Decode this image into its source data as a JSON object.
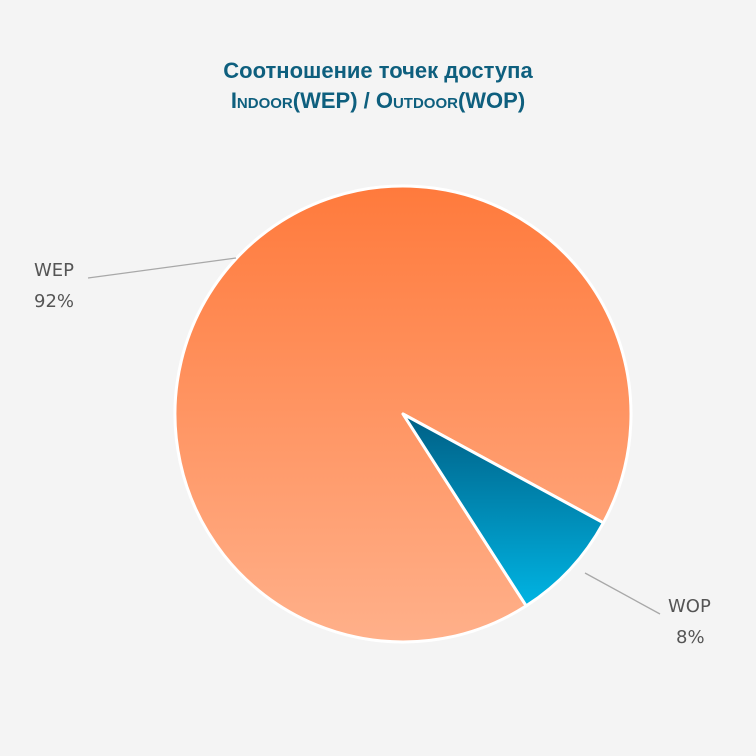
{
  "chart_data": {
    "type": "pie",
    "title": "Соотношение точек доступа",
    "subtitle": "Indoor(WEP) / Outdoor(WOP)",
    "slices": [
      {
        "name": "WEP",
        "value": 92,
        "label": "92%",
        "color": "#ff7a3c",
        "color_light": "#ffb08a"
      },
      {
        "name": "WOP",
        "value": 8,
        "label": "8%",
        "color": "#005f85",
        "color_light": "#00b4e3"
      }
    ]
  }
}
